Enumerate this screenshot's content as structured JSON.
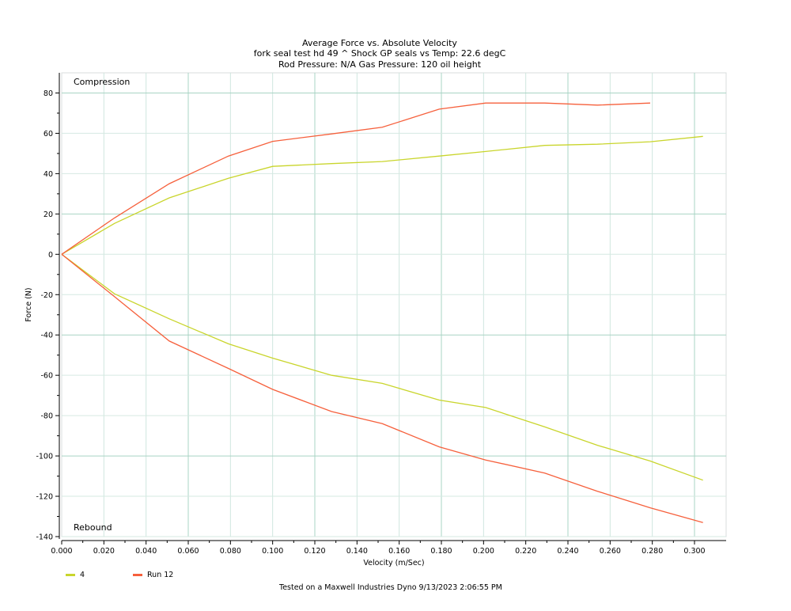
{
  "chart_data": {
    "type": "line",
    "title": "Average Force vs. Absolute Velocity",
    "subtitle_lines": [
      "fork seal test  hd 49 ^ Shock  GP seals vs  Temp: 22.6 degC",
      "Rod Pressure: N/A     Gas Pressure: 120 oil height"
    ],
    "xlabel": "Velocity (m/Sec)",
    "ylabel": "Force (N)",
    "xlim": [
      0,
      0.315
    ],
    "ylim": [
      -140,
      90
    ],
    "x_ticks": [
      "0.000",
      "0.020",
      "0.040",
      "0.060",
      "0.080",
      "0.100",
      "0.120",
      "0.140",
      "0.160",
      "0.180",
      "0.200",
      "0.220",
      "0.240",
      "0.260",
      "0.280",
      "0.300"
    ],
    "y_ticks": [
      "80",
      "60",
      "40",
      "20",
      "0",
      "-20",
      "-40",
      "-60",
      "-80",
      "-100",
      "-120",
      "-140"
    ],
    "grid": true,
    "annotations": {
      "compression": "Compression",
      "rebound": "Rebound"
    },
    "legend_position": "bottom-left",
    "series": [
      {
        "name": "4",
        "color": "#c9d52c",
        "compression": {
          "x": [
            0,
            0.025,
            0.051,
            0.079,
            0.1,
            0.128,
            0.152,
            0.179,
            0.201,
            0.229,
            0.254,
            0.279,
            0.304
          ],
          "y": [
            0,
            15.3,
            28,
            37.7,
            43.6,
            45,
            46,
            48.7,
            51,
            54,
            54.6,
            55.8,
            58.5
          ]
        },
        "rebound": {
          "x": [
            0,
            0.025,
            0.051,
            0.079,
            0.1,
            0.128,
            0.152,
            0.179,
            0.201,
            0.229,
            0.254,
            0.279,
            0.304
          ],
          "y": [
            0,
            -19.6,
            -32,
            -44.4,
            -51.5,
            -60,
            -64,
            -72.3,
            -76,
            -85.6,
            -94.7,
            -102.5,
            -112
          ]
        }
      },
      {
        "name": "Run 12",
        "color": "#f6603c",
        "compression": {
          "x": [
            0,
            0.025,
            0.051,
            0.079,
            0.1,
            0.128,
            0.152,
            0.179,
            0.201,
            0.229,
            0.254,
            0.279
          ],
          "y": [
            0,
            18,
            35,
            48.7,
            56,
            59.7,
            63,
            72,
            75,
            75,
            74,
            75
          ]
        },
        "rebound": {
          "x": [
            0,
            0.025,
            0.051,
            0.079,
            0.1,
            0.128,
            0.152,
            0.179,
            0.201,
            0.229,
            0.254,
            0.279,
            0.304
          ],
          "y": [
            0,
            -21,
            -43,
            -56.6,
            -67,
            -78,
            -84,
            -95.5,
            -102,
            -108.5,
            -117.5,
            -125.7,
            -133
          ]
        }
      }
    ]
  },
  "footer": "Tested on a Maxwell Industries Dyno  9/13/2023 2:06:55 PM"
}
